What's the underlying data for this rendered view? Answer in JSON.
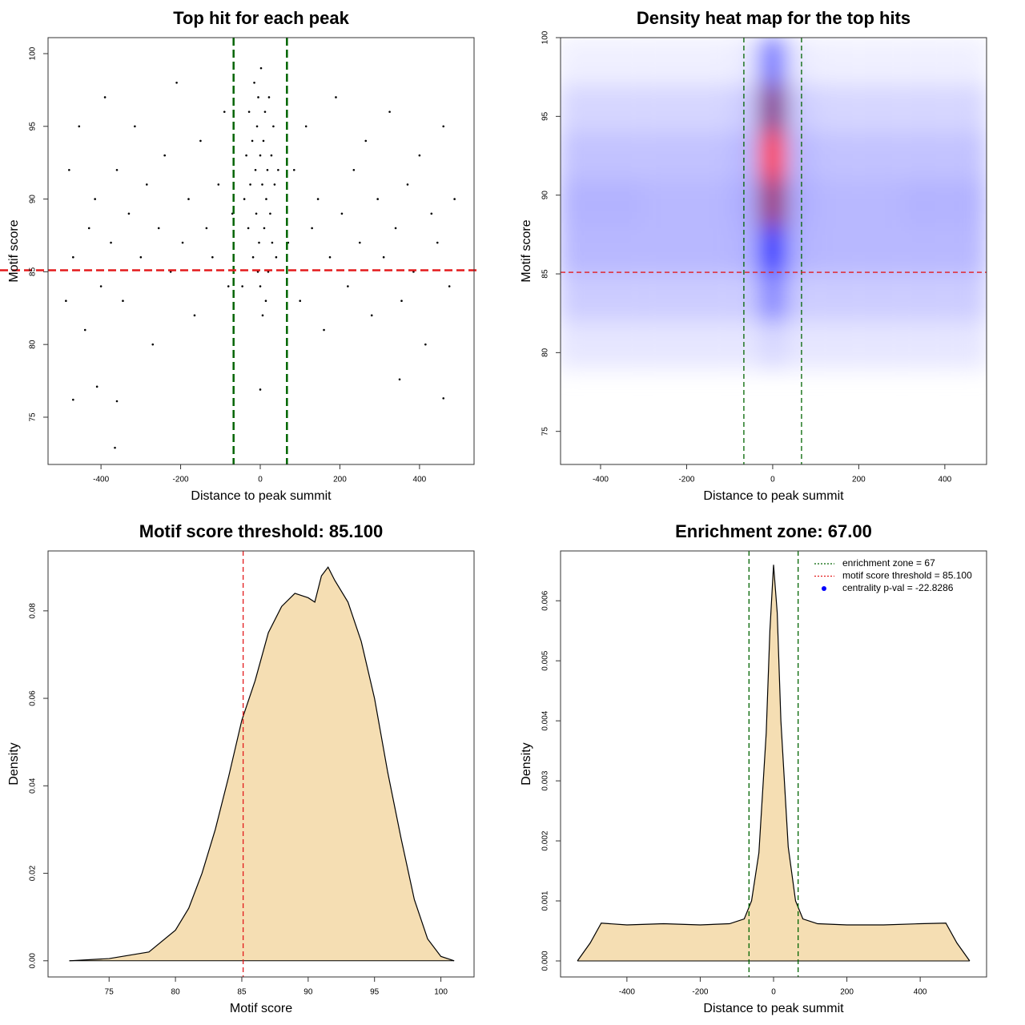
{
  "chart_data": [
    {
      "type": "scatter",
      "title": "Top hit for each peak",
      "x_label": "Distance to peak summit",
      "y_label": "Motif score",
      "x": [
        -480,
        -470,
        -455,
        -440,
        -430,
        -415,
        -400,
        -390,
        -375,
        -360,
        -345,
        -330,
        -315,
        -300,
        -285,
        -270,
        -255,
        -240,
        -225,
        -210,
        -195,
        -180,
        -165,
        -150,
        -135,
        -120,
        -105,
        -90,
        -80,
        -70,
        70,
        85,
        100,
        115,
        130,
        145,
        160,
        175,
        190,
        205,
        220,
        235,
        250,
        265,
        280,
        295,
        310,
        325,
        340,
        355,
        370,
        385,
        400,
        415,
        430,
        445,
        460,
        475,
        488,
        -488,
        -365,
        -360,
        -470,
        460,
        0,
        -410,
        350,
        -40,
        -35,
        -30,
        -28,
        -25,
        -20,
        -18,
        -15,
        -12,
        -10,
        -8,
        -5,
        -3,
        0,
        2,
        5,
        8,
        10,
        12,
        15,
        18,
        20,
        22,
        25,
        28,
        30,
        33,
        36,
        40,
        45,
        -45,
        0,
        6,
        -6,
        14
      ],
      "values": [
        92,
        86,
        95,
        81,
        88,
        90,
        84,
        97,
        87,
        92,
        83,
        89,
        95,
        86,
        91,
        80,
        88,
        93,
        85,
        98,
        87,
        90,
        82,
        94,
        88,
        86,
        91,
        96,
        84,
        89,
        87,
        92,
        83,
        95,
        88,
        90,
        81,
        86,
        97,
        89,
        84,
        92,
        87,
        94,
        82,
        90,
        86,
        96,
        88,
        83,
        91,
        85,
        93,
        80,
        89,
        87,
        95,
        84,
        90,
        83,
        72.9,
        76.1,
        76.2,
        76.3,
        76.9,
        77.1,
        77.6,
        90,
        93,
        88,
        96,
        91,
        94,
        86,
        98,
        92,
        89,
        95,
        97,
        87,
        93,
        99,
        91,
        94,
        88,
        96,
        90,
        92,
        85,
        97,
        89,
        93,
        87,
        95,
        91,
        86,
        92,
        84,
        84,
        82,
        85,
        83
      ],
      "color": "#000000",
      "xlim": [
        -533,
        537
      ],
      "ylim": [
        71.75,
        101.1
      ],
      "xticks": [
        -400,
        -200,
        0,
        200,
        400
      ],
      "yticks": [
        75,
        80,
        85,
        90,
        95,
        100
      ],
      "vlines": [
        -67,
        67
      ],
      "vline_color": "#006400",
      "hlines": [
        85.1
      ],
      "hline_color": "#e31a1c"
    },
    {
      "type": "heatmap",
      "title": "Density heat map for the top hits",
      "x_label": "Distance to peak summit",
      "y_label": "Motif score",
      "x_bins": [
        -500,
        -400,
        -300,
        -200,
        -100,
        -30,
        30,
        100,
        200,
        300,
        400,
        500
      ],
      "y_bins": [
        79,
        82,
        85,
        88,
        91,
        94,
        97,
        100
      ],
      "z": [
        [
          0.05,
          0.05,
          0.05,
          0.05,
          0.05,
          0.08,
          0.05,
          0.05,
          0.05,
          0.05,
          0.05
        ],
        [
          0.1,
          0.1,
          0.1,
          0.1,
          0.1,
          0.25,
          0.1,
          0.1,
          0.1,
          0.1,
          0.1
        ],
        [
          0.14,
          0.14,
          0.14,
          0.14,
          0.15,
          0.5,
          0.15,
          0.14,
          0.14,
          0.14,
          0.14
        ],
        [
          0.15,
          0.15,
          0.14,
          0.14,
          0.16,
          0.8,
          0.16,
          0.14,
          0.14,
          0.15,
          0.15
        ],
        [
          0.12,
          0.12,
          0.12,
          0.12,
          0.14,
          1,
          0.14,
          0.12,
          0.12,
          0.12,
          0.12
        ],
        [
          0.08,
          0.08,
          0.08,
          0.08,
          0.1,
          0.75,
          0.1,
          0.08,
          0.08,
          0.08,
          0.08
        ],
        [
          0.03,
          0.03,
          0.03,
          0.03,
          0.04,
          0.3,
          0.04,
          0.03,
          0.03,
          0.03,
          0.03
        ]
      ],
      "colors": [
        "#ffffff",
        "#0000ff",
        "#ff0000"
      ],
      "xlim": [
        -493,
        497
      ],
      "ylim": [
        72.9,
        100
      ],
      "xticks": [
        -400,
        -200,
        0,
        200,
        400
      ],
      "yticks": [
        75,
        80,
        85,
        90,
        95,
        100
      ],
      "vlines": [
        -67,
        67
      ],
      "vline_color": "#006400",
      "hlines": [
        85.1
      ],
      "hline_color": "#e31a1c"
    },
    {
      "type": "area",
      "title": "Motif score threshold: 85.100",
      "x_label": "Motif score",
      "y_label": "Density",
      "x": [
        72,
        75,
        78,
        80,
        81,
        82,
        83,
        84,
        85,
        86,
        87,
        88,
        89,
        90,
        90.5,
        91,
        91.5,
        92,
        93,
        94,
        95,
        96,
        97,
        98,
        99,
        100,
        101
      ],
      "values": [
        0,
        0.0005,
        0.002,
        0.007,
        0.012,
        0.02,
        0.03,
        0.042,
        0.055,
        0.064,
        0.075,
        0.081,
        0.084,
        0.083,
        0.082,
        0.088,
        0.09,
        0.087,
        0.082,
        0.073,
        0.06,
        0.043,
        0.028,
        0.014,
        0.005,
        0.001,
        0
      ],
      "color": "#f5deb3",
      "xlim": [
        70.4,
        102.5
      ],
      "ylim": [
        -0.0037,
        0.0937
      ],
      "xticks": [
        75,
        80,
        85,
        90,
        95,
        100
      ],
      "yticks": [
        {
          "value": 0,
          "label": "0.00"
        },
        0.02,
        0.04,
        0.06,
        0.08
      ],
      "vlines": [
        85.1
      ],
      "vline_color": "#e31a1c"
    },
    {
      "type": "area",
      "title": "Enrichment zone: 67.00",
      "x_label": "Distance to peak summit",
      "y_label": "Density",
      "x": [
        -535,
        -500,
        -470,
        -400,
        -300,
        -200,
        -120,
        -80,
        -60,
        -40,
        -20,
        -10,
        0,
        10,
        20,
        40,
        60,
        80,
        120,
        200,
        300,
        400,
        470,
        500,
        535
      ],
      "values": [
        0,
        0.0003,
        0.00063,
        0.0006,
        0.00062,
        0.0006,
        0.00062,
        0.0007,
        0.001,
        0.0018,
        0.0038,
        0.0055,
        0.0066,
        0.0058,
        0.004,
        0.0019,
        0.001,
        0.0007,
        0.00062,
        0.0006,
        0.0006,
        0.00062,
        0.00063,
        0.0003,
        0
      ],
      "color": "#f5deb3",
      "xlim": [
        -581,
        581
      ],
      "ylim": [
        -0.000267,
        0.00683
      ],
      "xticks": [
        -400,
        -200,
        0,
        200,
        400
      ],
      "yticks": [
        {
          "value": 0,
          "label": "0.000"
        },
        0.001,
        0.002,
        0.003,
        0.004,
        0.005,
        0.006
      ],
      "vlines": [
        -67,
        67
      ],
      "vline_color": "#006400",
      "legend": {
        "position": "top-right",
        "items": [
          {
            "label": "enrichment zone = 67",
            "color": "#006400",
            "style": "dotted"
          },
          {
            "label": "motif score threshold = 85.100",
            "color": "#e31a1c",
            "style": "dotted"
          },
          {
            "label": "centrality p-val = -22.8286",
            "color": "#0000ff",
            "style": "point"
          }
        ]
      }
    }
  ]
}
